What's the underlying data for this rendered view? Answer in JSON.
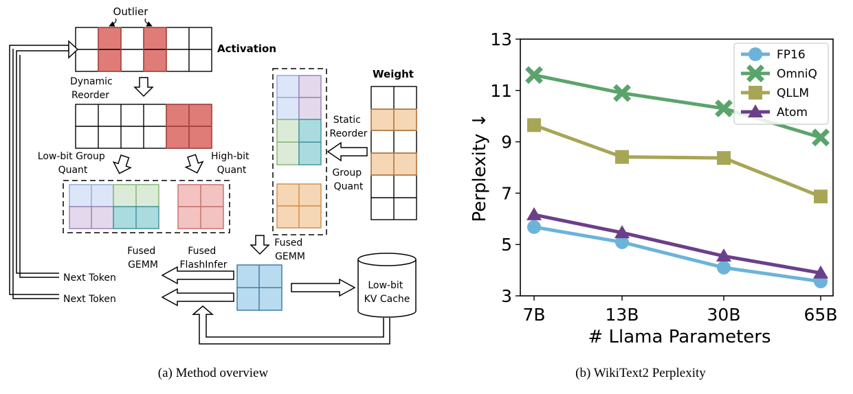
{
  "overview": {
    "caption": "(a) Method overview",
    "outlier_label": "Outlier",
    "activation_label": "Activation",
    "dynamic_reorder": [
      "Dynamic",
      "Reorder"
    ],
    "low_bit_group_quant": [
      "Low-bit Group",
      "Quant"
    ],
    "high_bit_quant": [
      "High-bit",
      "Quant"
    ],
    "weight_label": "Weight",
    "static_reorder": [
      "Static",
      "Reorder"
    ],
    "group_quant": [
      "Group",
      "Quant"
    ],
    "fused_gemm_center": [
      "Fused",
      "GEMM"
    ],
    "fused_gemm_left": [
      "Fused",
      "GEMM"
    ],
    "fused_flashinfer": [
      "Fused",
      "FlashInfer"
    ],
    "next_token_1": "Next Token",
    "next_token_2": "Next Token",
    "kv_cache": [
      "Low-bit",
      "KV Cache"
    ],
    "colors": {
      "outlier_fill": "#e07c78",
      "outlier_light": "#f2c3c1",
      "blue": "#dbe7f9",
      "purple": "#e4d9ec",
      "green": "#dcebd8",
      "teal": "#a9dbdf",
      "orange": "#f6d7b5",
      "fused_blue": "#b8dbf0"
    }
  },
  "perplexity": {
    "caption": "(b) WikiText2 Perplexity",
    "chart_data": {
      "type": "line",
      "title": "",
      "xlabel": "# Llama Parameters",
      "ylabel": "Perplexity ↓",
      "categories": [
        "7B",
        "13B",
        "30B",
        "65B"
      ],
      "ylim": [
        3,
        13
      ],
      "yticks": [
        3,
        5,
        7,
        9,
        11,
        13
      ],
      "grid": false,
      "legend_position": "top-right",
      "series": [
        {
          "name": "FP16",
          "values": [
            5.68,
            5.09,
            4.1,
            3.56
          ],
          "color": "#6cb3d9",
          "marker": "circle"
        },
        {
          "name": "OmniQ",
          "values": [
            11.6,
            10.9,
            10.3,
            9.17
          ],
          "color": "#5aa46b",
          "marker": "x"
        },
        {
          "name": "QLLM",
          "values": [
            9.65,
            8.41,
            8.37,
            6.87
          ],
          "color": "#a7a656",
          "marker": "square"
        },
        {
          "name": "Atom",
          "values": [
            6.16,
            5.46,
            4.55,
            3.89
          ],
          "color": "#6b3f8a",
          "marker": "triangle"
        }
      ]
    }
  }
}
